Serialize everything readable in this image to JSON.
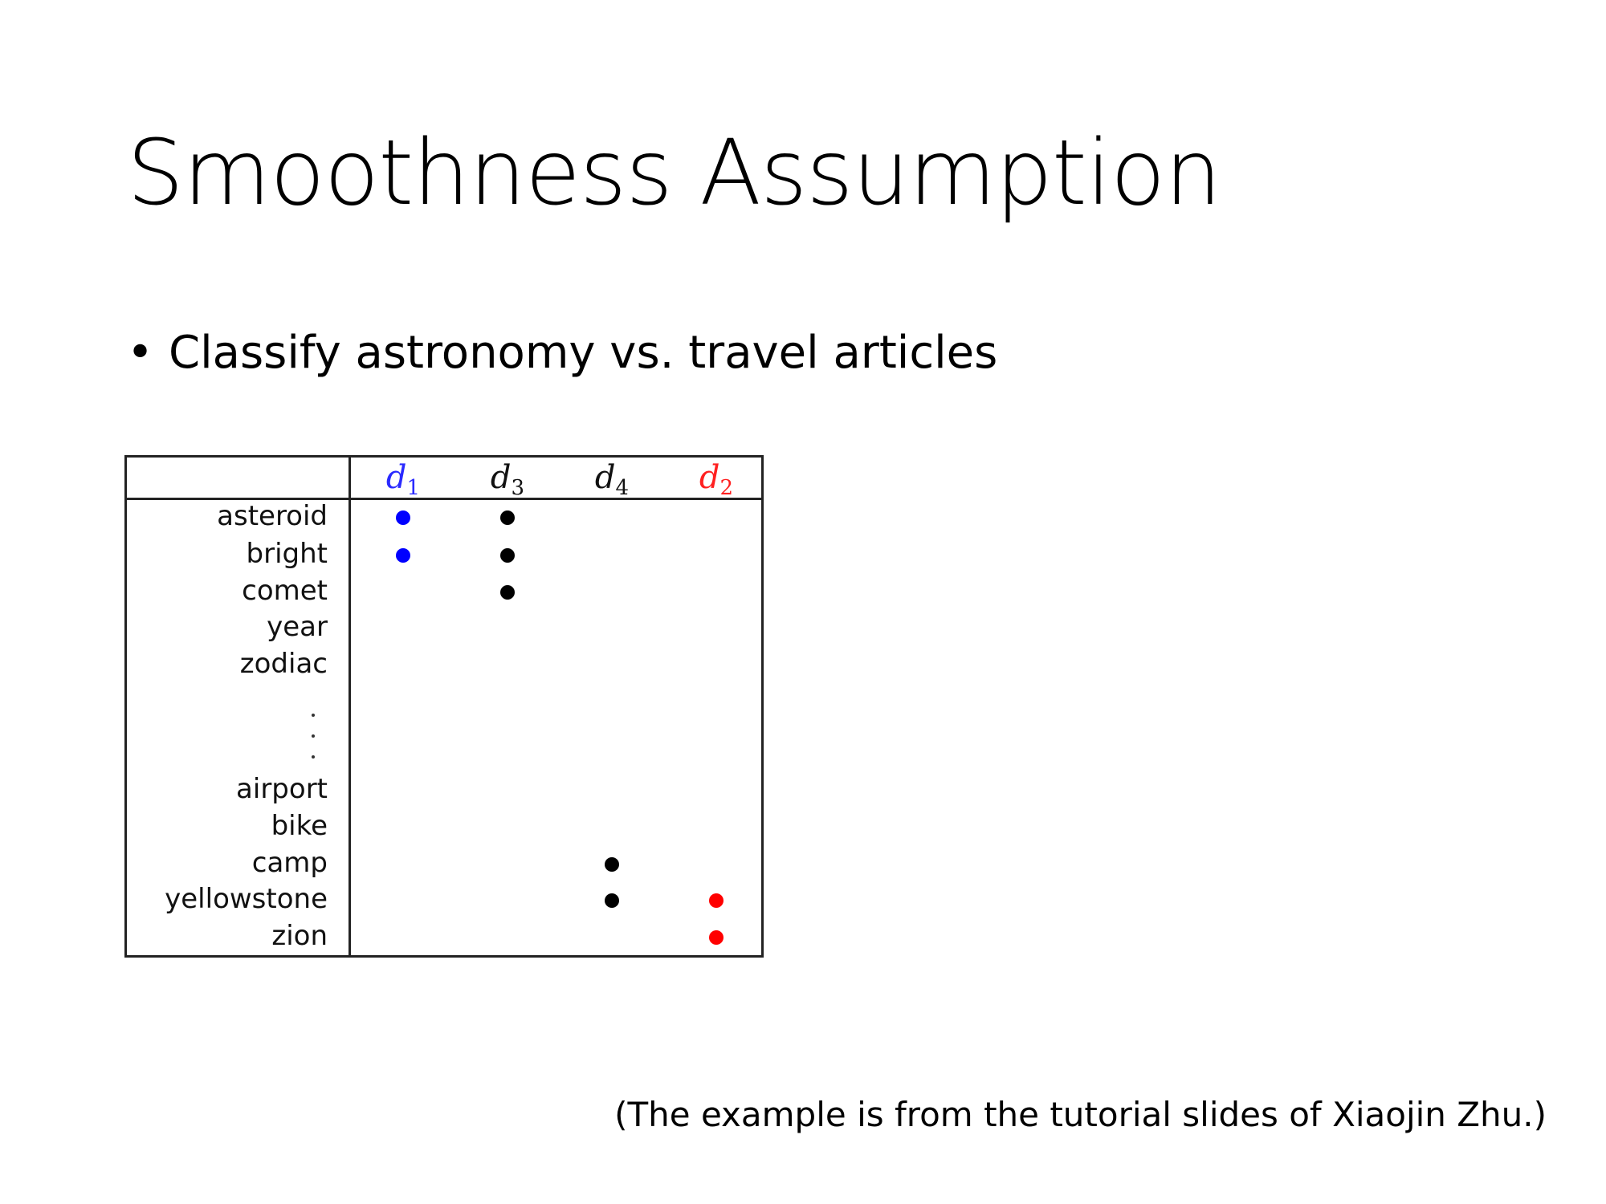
{
  "slide": {
    "title": "Smoothness Assumption",
    "bullets": [
      {
        "marker": "•",
        "text": "Classify astronomy vs. travel articles"
      }
    ],
    "footnote": "(The example is from the tutorial slides of Xiaojin Zhu.)"
  },
  "table": {
    "columns": [
      {
        "id": "d1",
        "letter": "d",
        "subscript": "1",
        "color": "#2a2aff"
      },
      {
        "id": "d3",
        "letter": "d",
        "subscript": "3",
        "color": "#111111"
      },
      {
        "id": "d4",
        "letter": "d",
        "subscript": "4",
        "color": "#111111"
      },
      {
        "id": "d2",
        "letter": "d",
        "subscript": "2",
        "color": "#ff2020"
      }
    ],
    "rows": [
      {
        "word": "asteroid",
        "marks": [
          "d1",
          "d3"
        ]
      },
      {
        "word": "bright",
        "marks": [
          "d1",
          "d3"
        ]
      },
      {
        "word": "comet",
        "marks": [
          "d3"
        ]
      },
      {
        "word": "year",
        "marks": []
      },
      {
        "word": "zodiac",
        "marks": []
      },
      {
        "word": "",
        "ellipsis": true,
        "marks": []
      },
      {
        "word": "airport",
        "marks": []
      },
      {
        "word": "bike",
        "marks": []
      },
      {
        "word": "camp",
        "marks": [
          "d4"
        ]
      },
      {
        "word": "yellowstone",
        "marks": [
          "d4",
          "d2"
        ]
      },
      {
        "word": "zion",
        "marks": [
          "d2"
        ]
      }
    ],
    "mark_colors": {
      "d1": "#0000ff",
      "d3": "#000000",
      "d4": "#000000",
      "d2": "#ff0000"
    }
  }
}
